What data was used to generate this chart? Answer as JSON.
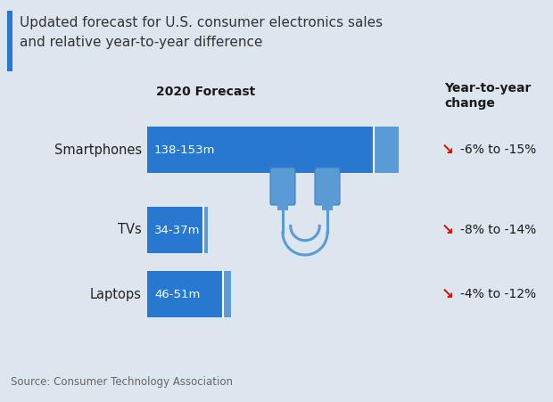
{
  "title_line1": "Updated forecast for U.S. consumer electronics sales",
  "title_line2": "and relative year-to-year difference",
  "background_color": "#dde5ef",
  "bar_color_main": "#2878d0",
  "bar_color_light": "#5b9bd5",
  "categories": [
    "Smartphones",
    "TVs",
    "Laptops"
  ],
  "bar_values": [
    153,
    37,
    51
  ],
  "bar_low_values": [
    138,
    34,
    46
  ],
  "bar_labels": [
    "138-153m",
    "34-37m",
    "46-51m"
  ],
  "yoy_labels": [
    "-6% to -15%",
    "-8% to -14%",
    "-4% to -12%"
  ],
  "forecast_header": "2020 Forecast",
  "yoy_header": "Year-to-year\nchange",
  "source": "Source: Consumer Technology Association",
  "red_arrow_color": "#cc1100",
  "title_bar_color": "#2878d0",
  "title_color": "#333333",
  "max_bar": 160,
  "icon_color": "#5b9bd5"
}
